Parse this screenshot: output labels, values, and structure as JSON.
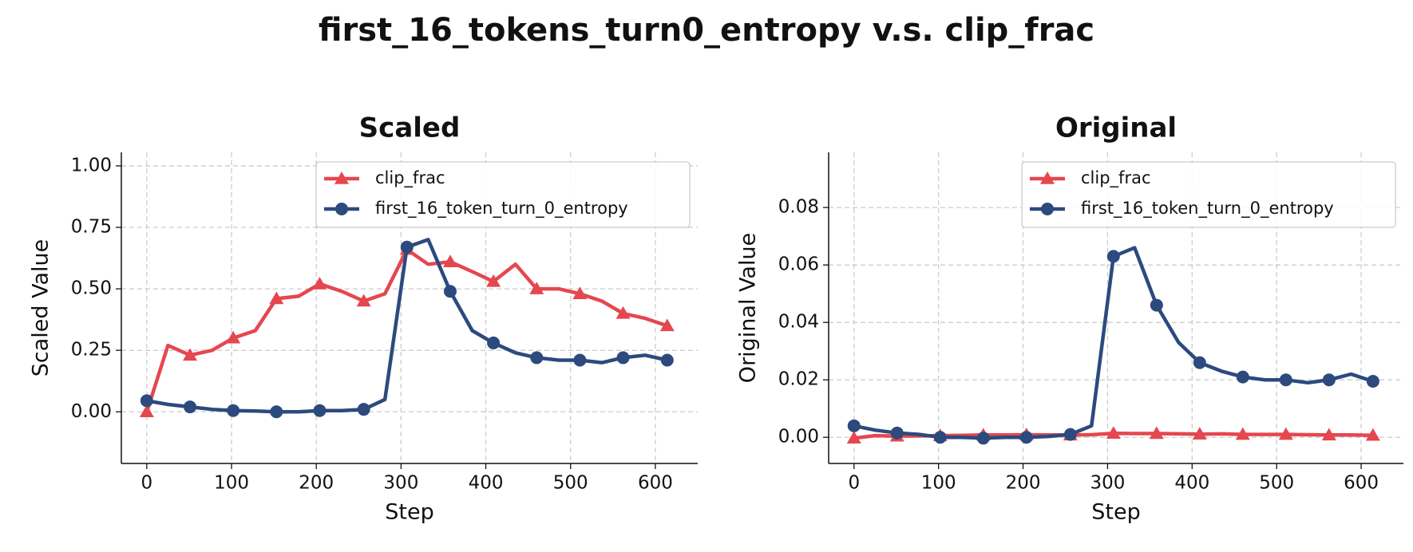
{
  "title": "first_16_tokens_turn0_entropy v.s. clip_frac",
  "chart_data": [
    {
      "type": "line",
      "title": "Scaled",
      "xlabel": "Step",
      "ylabel": "Scaled Value",
      "x": [
        0,
        25,
        51,
        77,
        102,
        128,
        153,
        179,
        204,
        230,
        256,
        281,
        307,
        332,
        358,
        384,
        409,
        435,
        460,
        486,
        511,
        537,
        562,
        588,
        614
      ],
      "series": [
        {
          "name": "clip_frac",
          "color": "#e5474f",
          "marker": "triangle",
          "values": [
            0.0,
            0.27,
            0.23,
            0.25,
            0.3,
            0.33,
            0.46,
            0.47,
            0.52,
            0.49,
            0.45,
            0.48,
            0.66,
            0.6,
            0.61,
            0.57,
            0.53,
            0.6,
            0.5,
            0.5,
            0.48,
            0.45,
            0.4,
            0.38,
            0.35
          ]
        },
        {
          "name": "first_16_token_turn_0_entropy",
          "color": "#2c4a7e",
          "marker": "circle",
          "values": [
            0.045,
            0.03,
            0.02,
            0.01,
            0.005,
            0.003,
            0.0,
            0.0,
            0.005,
            0.005,
            0.01,
            0.05,
            0.67,
            0.7,
            0.49,
            0.33,
            0.28,
            0.24,
            0.22,
            0.21,
            0.21,
            0.2,
            0.22,
            0.23,
            0.21
          ]
        }
      ],
      "markevery": 2,
      "xlim": [
        -30,
        650
      ],
      "xticks": [
        0,
        100,
        200,
        300,
        400,
        500,
        600
      ],
      "ylim": [
        -0.21,
        1.055
      ],
      "yticks": [
        {
          "value": 0,
          "label": "0.00"
        },
        {
          "value": 0.25,
          "label": "0.25"
        },
        {
          "value": 0.5,
          "label": "0.50"
        },
        {
          "value": 0.75,
          "label": "0.75"
        },
        {
          "value": 1,
          "label": "1.00"
        }
      ],
      "grid": true,
      "legend": "upper right"
    },
    {
      "type": "line",
      "title": "Original",
      "xlabel": "Step",
      "ylabel": "Original Value",
      "x": [
        0,
        25,
        51,
        77,
        102,
        128,
        153,
        179,
        204,
        230,
        256,
        281,
        307,
        332,
        358,
        384,
        409,
        435,
        460,
        486,
        511,
        537,
        562,
        588,
        614
      ],
      "series": [
        {
          "name": "clip_frac",
          "color": "#e5474f",
          "marker": "triangle",
          "values": [
            -0.0003,
            0.0006,
            0.0004,
            0.0005,
            0.0006,
            0.0007,
            0.0008,
            0.0008,
            0.0009,
            0.0008,
            0.0008,
            0.0009,
            0.0014,
            0.0013,
            0.0013,
            0.0012,
            0.0011,
            0.0012,
            0.001,
            0.001,
            0.001,
            0.0009,
            0.0008,
            0.0008,
            0.0007
          ]
        },
        {
          "name": "first_16_token_turn_0_entropy",
          "color": "#2c4a7e",
          "marker": "circle",
          "values": [
            0.004,
            0.0025,
            0.0015,
            0.001,
            0.0,
            0.0,
            -0.0003,
            0.0,
            0.0,
            0.0003,
            0.001,
            0.004,
            0.063,
            0.066,
            0.046,
            0.033,
            0.026,
            0.023,
            0.021,
            0.02,
            0.02,
            0.019,
            0.02,
            0.022,
            0.0195
          ]
        }
      ],
      "markevery": 2,
      "xlim": [
        -30,
        650
      ],
      "xticks": [
        0,
        100,
        200,
        300,
        400,
        500,
        600
      ],
      "ylim": [
        -0.0091,
        0.0992
      ],
      "yticks": [
        {
          "value": 0,
          "label": "0.00"
        },
        {
          "value": 0.02,
          "label": "0.02"
        },
        {
          "value": 0.04,
          "label": "0.04"
        },
        {
          "value": 0.06,
          "label": "0.06"
        },
        {
          "value": 0.08,
          "label": "0.08"
        }
      ],
      "grid": true,
      "legend": "upper right"
    }
  ]
}
